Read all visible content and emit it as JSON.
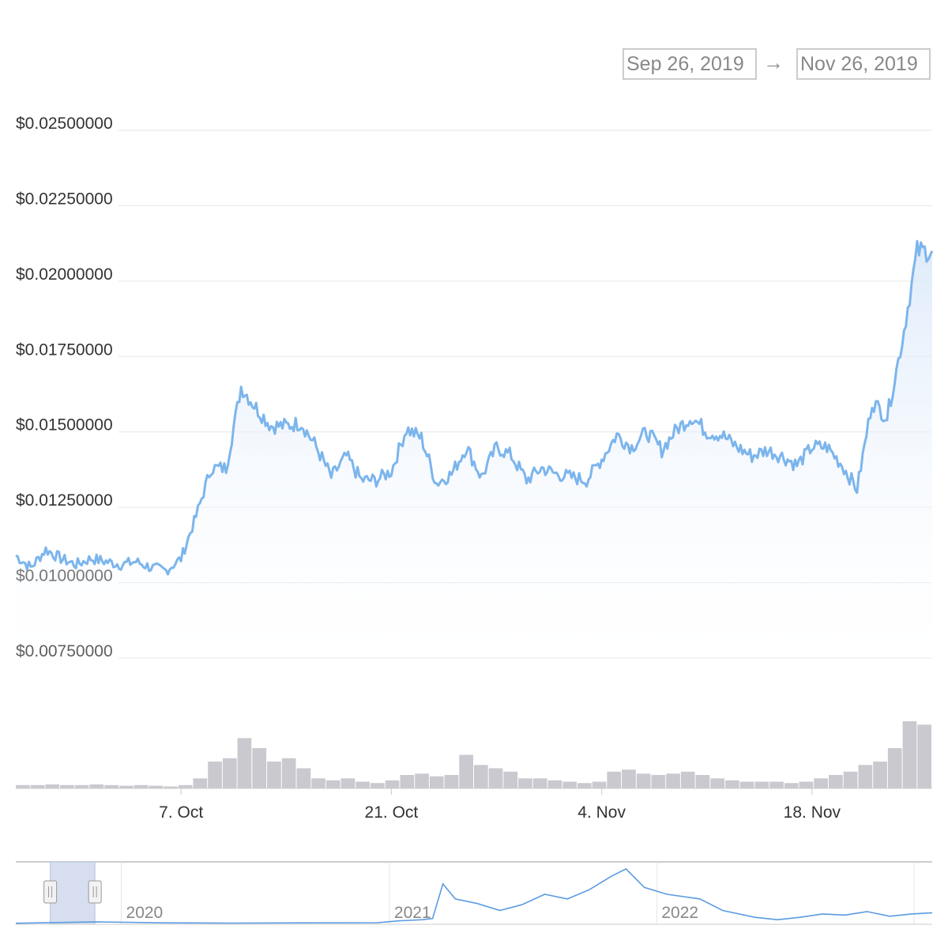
{
  "range_selector": {
    "from": "Sep 26, 2019",
    "arrow": "→",
    "to": "Nov 26, 2019"
  },
  "chart_data": {
    "type": "line",
    "x_range": [
      "2019-09-26",
      "2019-11-26"
    ],
    "ylim": [
      0.0075,
      0.025
    ],
    "y_ticks": [
      {
        "value": 0.025,
        "label": "$0.02500000"
      },
      {
        "value": 0.0225,
        "label": "$0.02250000"
      },
      {
        "value": 0.02,
        "label": "$0.02000000"
      },
      {
        "value": 0.0175,
        "label": "$0.01750000"
      },
      {
        "value": 0.015,
        "label": "$0.01500000"
      },
      {
        "value": 0.0125,
        "label": "$0.01250000"
      },
      {
        "value": 0.01,
        "label": "$0.01000000"
      },
      {
        "value": 0.0075,
        "label": "$0.00750000"
      }
    ],
    "x_ticks": [
      {
        "date": "2019-10-07",
        "label": "7. Oct"
      },
      {
        "date": "2019-10-21",
        "label": "21. Oct"
      },
      {
        "date": "2019-11-04",
        "label": "4. Nov"
      },
      {
        "date": "2019-11-18",
        "label": "18. Nov"
      }
    ],
    "grid": true,
    "series": [
      {
        "points": [
          [
            "2019-09-26",
            0.0109
          ],
          [
            "2019-09-27",
            0.0105
          ],
          [
            "2019-09-28",
            0.0111
          ],
          [
            "2019-09-29",
            0.0108
          ],
          [
            "2019-09-30",
            0.0106
          ],
          [
            "2019-10-01",
            0.0108
          ],
          [
            "2019-10-02",
            0.0107
          ],
          [
            "2019-10-03",
            0.0106
          ],
          [
            "2019-10-04",
            0.0107
          ],
          [
            "2019-10-05",
            0.0105
          ],
          [
            "2019-10-06",
            0.0104
          ],
          [
            "2019-10-07",
            0.0108
          ],
          [
            "2019-10-08",
            0.0122
          ],
          [
            "2019-10-09",
            0.0138
          ],
          [
            "2019-10-10",
            0.0138
          ],
          [
            "2019-10-11",
            0.0165
          ],
          [
            "2019-10-12",
            0.0158
          ],
          [
            "2019-10-13",
            0.0152
          ],
          [
            "2019-10-14",
            0.0152
          ],
          [
            "2019-10-15",
            0.0153
          ],
          [
            "2019-10-16",
            0.0145
          ],
          [
            "2019-10-17",
            0.0135
          ],
          [
            "2019-10-18",
            0.0142
          ],
          [
            "2019-10-19",
            0.0134
          ],
          [
            "2019-10-20",
            0.0134
          ],
          [
            "2019-10-21",
            0.0137
          ],
          [
            "2019-10-22",
            0.0151
          ],
          [
            "2019-10-23",
            0.0148
          ],
          [
            "2019-10-24",
            0.0133
          ],
          [
            "2019-10-25",
            0.0136
          ],
          [
            "2019-10-26",
            0.0145
          ],
          [
            "2019-10-27",
            0.0135
          ],
          [
            "2019-10-28",
            0.0145
          ],
          [
            "2019-10-29",
            0.0142
          ],
          [
            "2019-10-30",
            0.0134
          ],
          [
            "2019-10-31",
            0.0138
          ],
          [
            "2019-11-01",
            0.0136
          ],
          [
            "2019-11-02",
            0.0135
          ],
          [
            "2019-11-03",
            0.0134
          ],
          [
            "2019-11-04",
            0.0141
          ],
          [
            "2019-11-05",
            0.0149
          ],
          [
            "2019-11-06",
            0.0145
          ],
          [
            "2019-11-07",
            0.015
          ],
          [
            "2019-11-08",
            0.0144
          ],
          [
            "2019-11-09",
            0.0151
          ],
          [
            "2019-11-10",
            0.0155
          ],
          [
            "2019-11-11",
            0.015
          ],
          [
            "2019-11-12",
            0.0149
          ],
          [
            "2019-11-13",
            0.0145
          ],
          [
            "2019-11-14",
            0.0142
          ],
          [
            "2019-11-15",
            0.0144
          ],
          [
            "2019-11-16",
            0.0142
          ],
          [
            "2019-11-17",
            0.0139
          ],
          [
            "2019-11-18",
            0.0145
          ],
          [
            "2019-11-19",
            0.0145
          ],
          [
            "2019-11-20",
            0.0139
          ],
          [
            "2019-11-21",
            0.0131
          ],
          [
            "2019-11-22",
            0.016
          ],
          [
            "2019-11-23",
            0.0155
          ],
          [
            "2019-11-24",
            0.018
          ],
          [
            "2019-11-25",
            0.021
          ],
          [
            "2019-11-26",
            0.021
          ]
        ]
      }
    ],
    "volume": {
      "values": [
        0.05,
        0.05,
        0.06,
        0.05,
        0.05,
        0.06,
        0.05,
        0.04,
        0.05,
        0.04,
        0.03,
        0.05,
        0.15,
        0.4,
        0.45,
        0.75,
        0.6,
        0.4,
        0.45,
        0.3,
        0.15,
        0.12,
        0.15,
        0.1,
        0.08,
        0.12,
        0.2,
        0.22,
        0.18,
        0.2,
        0.5,
        0.35,
        0.3,
        0.25,
        0.15,
        0.15,
        0.12,
        0.1,
        0.08,
        0.1,
        0.25,
        0.28,
        0.22,
        0.2,
        0.22,
        0.25,
        0.2,
        0.15,
        0.12,
        0.1,
        0.1,
        0.1,
        0.08,
        0.1,
        0.15,
        0.2,
        0.25,
        0.35,
        0.4,
        0.6,
        1.0,
        0.95
      ]
    }
  },
  "navigator": {
    "year_labels": [
      {
        "date": "2020-01-01",
        "label": "2020"
      },
      {
        "date": "2021-01-01",
        "label": "2021"
      },
      {
        "date": "2022-01-01",
        "label": "2022"
      }
    ],
    "x_range": [
      "2019-08-10",
      "2023-01-12"
    ],
    "selection": [
      "2019-09-26",
      "2019-11-26"
    ],
    "series": [
      [
        "2019-08-10",
        0.009
      ],
      [
        "2019-11-26",
        0.021
      ],
      [
        "2020-03-01",
        0.012
      ],
      [
        "2020-06-01",
        0.01
      ],
      [
        "2020-09-01",
        0.012
      ],
      [
        "2020-12-15",
        0.013
      ],
      [
        "2021-01-15",
        0.03
      ],
      [
        "2021-02-15",
        0.04
      ],
      [
        "2021-03-01",
        0.05
      ],
      [
        "2021-03-15",
        0.35
      ],
      [
        "2021-04-01",
        0.22
      ],
      [
        "2021-05-01",
        0.18
      ],
      [
        "2021-06-01",
        0.12
      ],
      [
        "2021-07-01",
        0.17
      ],
      [
        "2021-08-01",
        0.26
      ],
      [
        "2021-09-01",
        0.22
      ],
      [
        "2021-10-01",
        0.3
      ],
      [
        "2021-11-01",
        0.42
      ],
      [
        "2021-11-20",
        0.48
      ],
      [
        "2021-12-15",
        0.32
      ],
      [
        "2022-01-15",
        0.26
      ],
      [
        "2022-03-01",
        0.22
      ],
      [
        "2022-04-01",
        0.12
      ],
      [
        "2022-05-15",
        0.06
      ],
      [
        "2022-06-15",
        0.04
      ],
      [
        "2022-07-15",
        0.06
      ],
      [
        "2022-08-15",
        0.09
      ],
      [
        "2022-09-15",
        0.08
      ],
      [
        "2022-10-15",
        0.11
      ],
      [
        "2022-11-15",
        0.07
      ],
      [
        "2022-12-15",
        0.09
      ],
      [
        "2023-01-12",
        0.1
      ]
    ]
  }
}
